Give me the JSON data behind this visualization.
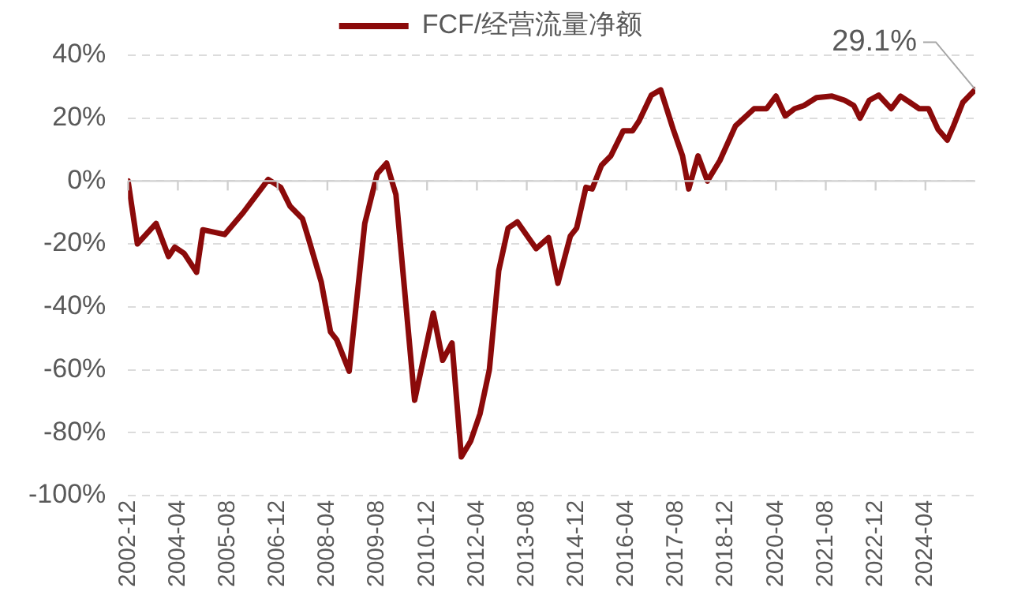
{
  "chart_data": {
    "type": "line",
    "legend": "top",
    "grid": "y",
    "line_style": "solid",
    "marker": "none",
    "xlim": [
      "2002-12",
      "2025-08"
    ],
    "xticks": [
      "2002-12",
      "2004-04",
      "2005-08",
      "2006-12",
      "2008-04",
      "2009-08",
      "2010-12",
      "2012-04",
      "2013-08",
      "2014-12",
      "2016-04",
      "2017-08",
      "2018-12",
      "2020-04",
      "2021-08",
      "2022-12",
      "2024-04"
    ],
    "ylim": [
      -100,
      40
    ],
    "yticks": [
      {
        "value": -100,
        "label": "-100%"
      },
      {
        "value": -80,
        "label": "-80%"
      },
      {
        "value": -60,
        "label": "-60%"
      },
      {
        "value": -40,
        "label": "-40%"
      },
      {
        "value": -20,
        "label": "-20%"
      },
      {
        "value": 0,
        "label": "0%"
      },
      {
        "value": 20,
        "label": "20%"
      },
      {
        "value": 40,
        "label": "40%"
      }
    ],
    "annotations": [
      {
        "text": "29.1%",
        "x": "2025-08",
        "y": 29.1
      }
    ],
    "series": [
      {
        "name": "FCF/经营流量净额",
        "color": "#8b0a0a",
        "x": [
          "2002-12",
          "2003-03",
          "2003-09",
          "2004-01",
          "2004-03",
          "2004-06",
          "2004-10",
          "2004-12",
          "2005-07",
          "2006-01",
          "2006-09",
          "2007-01",
          "2007-04",
          "2007-08",
          "2007-10",
          "2008-02",
          "2008-05",
          "2008-07",
          "2008-11",
          "2009-04",
          "2009-08",
          "2009-11",
          "2010-02",
          "2010-08",
          "2011-02",
          "2011-05",
          "2011-08",
          "2011-11",
          "2012-02",
          "2012-05",
          "2012-08",
          "2012-11",
          "2013-02",
          "2013-05",
          "2013-11",
          "2014-03",
          "2014-06",
          "2014-10",
          "2014-12",
          "2015-03",
          "2015-05",
          "2015-08",
          "2015-11",
          "2016-03",
          "2016-06",
          "2016-08",
          "2016-12",
          "2017-03",
          "2017-07",
          "2017-10",
          "2017-12",
          "2018-03",
          "2018-06",
          "2018-10",
          "2019-03",
          "2019-09",
          "2020-01",
          "2020-04",
          "2020-07",
          "2020-10",
          "2021-01",
          "2021-05",
          "2021-10",
          "2022-02",
          "2022-05",
          "2022-07",
          "2022-10",
          "2023-01",
          "2023-05",
          "2023-08",
          "2023-11",
          "2024-02",
          "2024-05",
          "2024-08",
          "2024-11",
          "2025-01",
          "2025-04",
          "2025-08"
        ],
        "values": [
          0,
          -20,
          -13.5,
          -24,
          -21,
          -23,
          -29,
          -15.5,
          -17,
          -10,
          0.5,
          -2,
          -8,
          -12,
          -18.5,
          -32,
          -48,
          -50.5,
          -60.5,
          -13.5,
          2.3,
          5.7,
          -4.3,
          -69.7,
          -42,
          -57,
          -51.5,
          -87.7,
          -82.7,
          -74,
          -60,
          -28.5,
          -15,
          -13,
          -21.5,
          -18,
          -32.5,
          -17.5,
          -15,
          -2,
          -2.5,
          5,
          8,
          16,
          16,
          19,
          27.3,
          29,
          16.5,
          8,
          -2.5,
          8,
          0,
          6.5,
          17.5,
          23,
          23,
          27,
          20.7,
          23,
          24,
          26.5,
          27,
          25.7,
          24,
          20,
          25.7,
          27.3,
          23,
          27,
          25,
          23,
          23,
          16.5,
          13,
          17.5,
          25,
          29.1
        ]
      }
    ]
  }
}
